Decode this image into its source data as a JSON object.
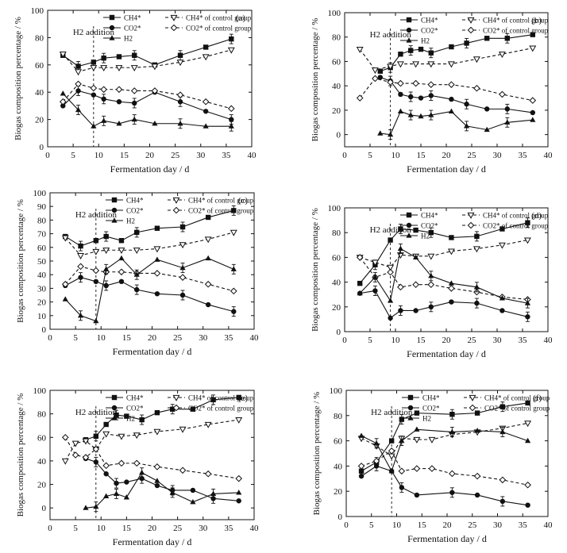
{
  "figure_meta": {
    "x_label": "Fermentation day / d",
    "y_label": "Biogas composition percentage / %",
    "annotation": "H2 addition",
    "legend": {
      "ch4": "CH4*",
      "ch4_ctrl": "CH4* of control group",
      "co2": "CO2*",
      "co2_ctrl": "CO2* of control group",
      "h2": "H2"
    },
    "colors": {
      "ink": "#111111",
      "background": "#ffffff"
    }
  },
  "chart_data": [
    {
      "panel": "(a)",
      "type": "line",
      "xlim": [
        0,
        40
      ],
      "ylim": [
        0,
        100
      ],
      "xticks": [
        0,
        5,
        10,
        15,
        20,
        25,
        30,
        35,
        40
      ],
      "yticks": [
        0,
        20,
        40,
        60,
        80,
        100
      ],
      "xlabel": "Fermentation day / d",
      "ylabel": "Biogas composition percentage / %",
      "annotation_x": 9,
      "series": [
        {
          "key": "ch4",
          "name": "CH4*",
          "marker": "square",
          "dashed": false,
          "x": [
            3,
            6,
            9,
            11,
            14,
            17,
            21,
            26,
            31,
            36
          ],
          "y": [
            67,
            59,
            62,
            65,
            66,
            67,
            60,
            67,
            73,
            79
          ]
        },
        {
          "key": "ch4_ctrl",
          "name": "CH4* of control group",
          "marker": "tri-down-open",
          "dashed": true,
          "x": [
            3,
            6,
            9,
            11,
            14,
            17,
            21,
            26,
            31,
            36
          ],
          "y": [
            68,
            55,
            58,
            58,
            58,
            58,
            59,
            62,
            66,
            71
          ]
        },
        {
          "key": "co2",
          "name": "CO2*",
          "marker": "circle",
          "dashed": false,
          "x": [
            3,
            6,
            9,
            11,
            14,
            17,
            21,
            26,
            31,
            36
          ],
          "y": [
            30,
            41,
            38,
            35,
            33,
            32,
            40,
            33,
            26,
            20
          ]
        },
        {
          "key": "co2_ctrl",
          "name": "CO2* of control group",
          "marker": "diamond-open",
          "dashed": true,
          "x": [
            3,
            6,
            9,
            11,
            14,
            17,
            21,
            26,
            31,
            36
          ],
          "y": [
            33,
            46,
            43,
            42,
            42,
            41,
            41,
            38,
            33,
            28
          ]
        },
        {
          "key": "h2",
          "name": "H2",
          "marker": "triangle",
          "dashed": false,
          "x": [
            3,
            6,
            9,
            11,
            14,
            17,
            21,
            26,
            31,
            36
          ],
          "y": [
            39,
            27,
            15,
            19,
            17,
            20,
            17,
            17,
            15,
            15
          ]
        }
      ]
    },
    {
      "panel": "(b)",
      "type": "line",
      "xlim": [
        0,
        40
      ],
      "ylim": [
        -10,
        100
      ],
      "xticks": [
        0,
        5,
        10,
        15,
        20,
        25,
        30,
        35,
        40
      ],
      "yticks": [
        0,
        20,
        40,
        60,
        80,
        100
      ],
      "xlabel": "Fermentation day / d",
      "ylabel": "Biogas composition percentage / %",
      "annotation_x": 9,
      "series": [
        {
          "key": "ch4",
          "name": "CH4*",
          "marker": "square",
          "dashed": false,
          "x": [
            7,
            9,
            11,
            13,
            15,
            17,
            21,
            24,
            28,
            32,
            37
          ],
          "y": [
            52,
            55,
            66,
            69,
            70,
            67,
            72,
            75,
            79,
            79,
            82
          ]
        },
        {
          "key": "ch4_ctrl",
          "name": "CH4* of control group",
          "marker": "tri-down-open",
          "dashed": true,
          "x": [
            3,
            6,
            9,
            11,
            14,
            17,
            21,
            26,
            31,
            37
          ],
          "y": [
            70,
            53,
            56,
            58,
            58,
            58,
            58,
            62,
            66,
            71
          ]
        },
        {
          "key": "co2",
          "name": "CO2*",
          "marker": "circle",
          "dashed": false,
          "x": [
            7,
            9,
            11,
            13,
            15,
            17,
            21,
            24,
            28,
            32,
            37
          ],
          "y": [
            47,
            44,
            33,
            31,
            30,
            32,
            29,
            25,
            21,
            21,
            18
          ]
        },
        {
          "key": "co2_ctrl",
          "name": "CO2* of control group",
          "marker": "diamond-open",
          "dashed": true,
          "x": [
            3,
            6,
            9,
            11,
            14,
            17,
            21,
            26,
            31,
            37
          ],
          "y": [
            30,
            46,
            43,
            42,
            42,
            41,
            41,
            38,
            33,
            28
          ]
        },
        {
          "key": "h2",
          "name": "H2",
          "marker": "triangle",
          "dashed": false,
          "x": [
            7,
            9,
            11,
            13,
            15,
            17,
            21,
            24,
            28,
            32,
            37
          ],
          "y": [
            1,
            0,
            19,
            16,
            15,
            16,
            19,
            7,
            4,
            10,
            12
          ]
        }
      ]
    },
    {
      "panel": "(c)",
      "type": "line",
      "xlim": [
        0,
        40
      ],
      "ylim": [
        0,
        100
      ],
      "xticks": [
        0,
        5,
        10,
        15,
        20,
        25,
        30,
        35,
        40
      ],
      "yticks": [
        0,
        10,
        20,
        30,
        40,
        50,
        60,
        70,
        80,
        90,
        100
      ],
      "xlabel": "Fermentation day / d",
      "ylabel": "Biogas composition percentage / %",
      "annotation_x": 9,
      "series": [
        {
          "key": "ch4",
          "name": "CH4*",
          "marker": "square",
          "dashed": false,
          "x": [
            3,
            6,
            9,
            11,
            14,
            17,
            21,
            26,
            31,
            36
          ],
          "y": [
            68,
            61,
            65,
            68,
            65,
            71,
            74,
            75,
            82,
            87
          ]
        },
        {
          "key": "ch4_ctrl",
          "name": "CH4* of control group",
          "marker": "tri-down-open",
          "dashed": true,
          "x": [
            3,
            6,
            9,
            11,
            14,
            17,
            21,
            26,
            31,
            36
          ],
          "y": [
            67,
            54,
            57,
            58,
            58,
            58,
            59,
            62,
            66,
            71
          ]
        },
        {
          "key": "co2",
          "name": "CO2*",
          "marker": "circle",
          "dashed": false,
          "x": [
            3,
            6,
            9,
            11,
            14,
            17,
            21,
            26,
            31,
            36
          ],
          "y": [
            32,
            38,
            35,
            32,
            35,
            29,
            26,
            25,
            18,
            13
          ]
        },
        {
          "key": "co2_ctrl",
          "name": "CO2* of control group",
          "marker": "diamond-open",
          "dashed": true,
          "x": [
            3,
            6,
            9,
            11,
            14,
            17,
            21,
            26,
            31,
            36
          ],
          "y": [
            33,
            46,
            43,
            42,
            42,
            41,
            41,
            38,
            33,
            28
          ]
        },
        {
          "key": "h2",
          "name": "H2",
          "marker": "triangle",
          "dashed": false,
          "x": [
            3,
            6,
            9,
            11,
            14,
            17,
            21,
            26,
            31,
            36
          ],
          "y": [
            22,
            10,
            6,
            44,
            52,
            40,
            51,
            45,
            52,
            44
          ]
        }
      ]
    },
    {
      "panel": "(d)",
      "type": "line",
      "xlim": [
        0,
        40
      ],
      "ylim": [
        0,
        100
      ],
      "xticks": [
        0,
        5,
        10,
        15,
        20,
        25,
        30,
        35,
        40
      ],
      "yticks": [
        0,
        20,
        40,
        60,
        80,
        100
      ],
      "xlabel": "Fermentation day / d",
      "ylabel": "Biogas composition percentage / %",
      "annotation_x": 9,
      "series": [
        {
          "key": "ch4",
          "name": "CH4*",
          "marker": "square",
          "dashed": false,
          "x": [
            3,
            6,
            9,
            11,
            14,
            17,
            21,
            26,
            31,
            36
          ],
          "y": [
            39,
            54,
            74,
            83,
            82,
            80,
            76,
            77,
            83,
            88
          ]
        },
        {
          "key": "ch4_ctrl",
          "name": "CH4* of control group",
          "marker": "tri-down-open",
          "dashed": true,
          "x": [
            3,
            6,
            9,
            11,
            14,
            17,
            21,
            26,
            31,
            36
          ],
          "y": [
            60,
            56,
            52,
            62,
            61,
            61,
            65,
            67,
            70,
            74
          ]
        },
        {
          "key": "co2",
          "name": "CO2*",
          "marker": "circle",
          "dashed": false,
          "x": [
            3,
            6,
            9,
            11,
            14,
            17,
            21,
            26,
            31,
            36
          ],
          "y": [
            31,
            33,
            11,
            17,
            17,
            20,
            24,
            23,
            17,
            12
          ]
        },
        {
          "key": "co2_ctrl",
          "name": "CO2* of control group",
          "marker": "diamond-open",
          "dashed": true,
          "x": [
            3,
            6,
            9,
            11,
            14,
            17,
            21,
            26,
            31,
            36
          ],
          "y": [
            60,
            44,
            48,
            36,
            38,
            38,
            35,
            32,
            28,
            26
          ]
        },
        {
          "key": "h2",
          "name": "H2",
          "marker": "triangle",
          "dashed": false,
          "x": [
            3,
            6,
            9,
            11,
            14,
            17,
            21,
            26,
            31,
            36
          ],
          "y": [
            31,
            44,
            25,
            67,
            60,
            45,
            39,
            36,
            27,
            23
          ]
        }
      ]
    },
    {
      "panel": "(e)",
      "type": "line",
      "xlim": [
        0,
        40
      ],
      "ylim": [
        -10,
        100
      ],
      "xticks": [
        0,
        5,
        10,
        15,
        20,
        25,
        30,
        35,
        40
      ],
      "yticks": [
        0,
        20,
        40,
        60,
        80,
        100
      ],
      "xlabel": "Fermentation day / d",
      "ylabel": "Biogas composition percentage / %",
      "annotation_x": 9,
      "series": [
        {
          "key": "ch4",
          "name": "CH4*",
          "marker": "square",
          "dashed": false,
          "x": [
            7,
            9,
            11,
            13,
            15,
            18,
            21,
            24,
            28,
            32,
            37
          ],
          "y": [
            58,
            61,
            71,
            79,
            78,
            75,
            81,
            84,
            84,
            92,
            94
          ]
        },
        {
          "key": "ch4_ctrl",
          "name": "CH4* of control group",
          "marker": "tri-down-open",
          "dashed": true,
          "x": [
            3,
            5,
            7,
            9,
            11,
            14,
            17,
            21,
            26,
            31,
            37
          ],
          "y": [
            40,
            55,
            57,
            50,
            63,
            61,
            62,
            65,
            67,
            71,
            75
          ]
        },
        {
          "key": "co2",
          "name": "CO2*",
          "marker": "circle",
          "dashed": false,
          "x": [
            7,
            9,
            11,
            13,
            15,
            18,
            21,
            24,
            28,
            32,
            37
          ],
          "y": [
            42,
            39,
            29,
            21,
            22,
            25,
            19,
            15,
            15,
            8,
            6
          ]
        },
        {
          "key": "co2_ctrl",
          "name": "CO2* of control group",
          "marker": "diamond-open",
          "dashed": true,
          "x": [
            3,
            5,
            7,
            9,
            11,
            14,
            17,
            21,
            26,
            31,
            37
          ],
          "y": [
            60,
            45,
            43,
            50,
            36,
            38,
            38,
            35,
            32,
            29,
            25
          ]
        },
        {
          "key": "h2",
          "name": "H2",
          "marker": "triangle",
          "dashed": false,
          "x": [
            7,
            9,
            11,
            13,
            15,
            18,
            21,
            24,
            28,
            32,
            37
          ],
          "y": [
            0,
            1,
            10,
            12,
            9,
            30,
            23,
            13,
            5,
            12,
            13
          ]
        }
      ]
    },
    {
      "panel": "(f)",
      "type": "line",
      "xlim": [
        0,
        40
      ],
      "ylim": [
        0,
        100
      ],
      "xticks": [
        0,
        5,
        10,
        15,
        20,
        25,
        30,
        35,
        40
      ],
      "yticks": [
        0,
        20,
        40,
        60,
        80,
        100
      ],
      "xlabel": "Fermentation day / d",
      "ylabel": "Biogas composition percentage / %",
      "annotation_x": 9,
      "series": [
        {
          "key": "ch4",
          "name": "CH4*",
          "marker": "square",
          "dashed": false,
          "x": [
            3,
            6,
            9,
            11,
            14,
            21,
            26,
            31,
            36
          ],
          "y": [
            36,
            43,
            60,
            77,
            82,
            81,
            82,
            87,
            90
          ]
        },
        {
          "key": "ch4_ctrl",
          "name": "CH4* of control group",
          "marker": "tri-down-open",
          "dashed": true,
          "x": [
            3,
            6,
            9,
            11,
            14,
            17,
            21,
            26,
            31,
            36
          ],
          "y": [
            62,
            56,
            48,
            62,
            61,
            61,
            65,
            67,
            70,
            74
          ]
        },
        {
          "key": "co2",
          "name": "CO2*",
          "marker": "circle",
          "dashed": false,
          "x": [
            3,
            6,
            9,
            11,
            14,
            21,
            26,
            31,
            36
          ],
          "y": [
            32,
            40,
            36,
            23,
            17,
            19,
            17,
            12,
            9
          ]
        },
        {
          "key": "co2_ctrl",
          "name": "CO2* of control group",
          "marker": "diamond-open",
          "dashed": true,
          "x": [
            3,
            6,
            9,
            11,
            14,
            17,
            21,
            26,
            31,
            36
          ],
          "y": [
            40,
            44,
            52,
            36,
            38,
            38,
            34,
            32,
            29,
            25
          ]
        },
        {
          "key": "h2",
          "name": "H2",
          "marker": "triangle",
          "dashed": false,
          "x": [
            3,
            6,
            9,
            11,
            14,
            21,
            26,
            31,
            36
          ],
          "y": [
            64,
            58,
            36,
            60,
            69,
            67,
            68,
            67,
            60
          ]
        }
      ]
    }
  ]
}
